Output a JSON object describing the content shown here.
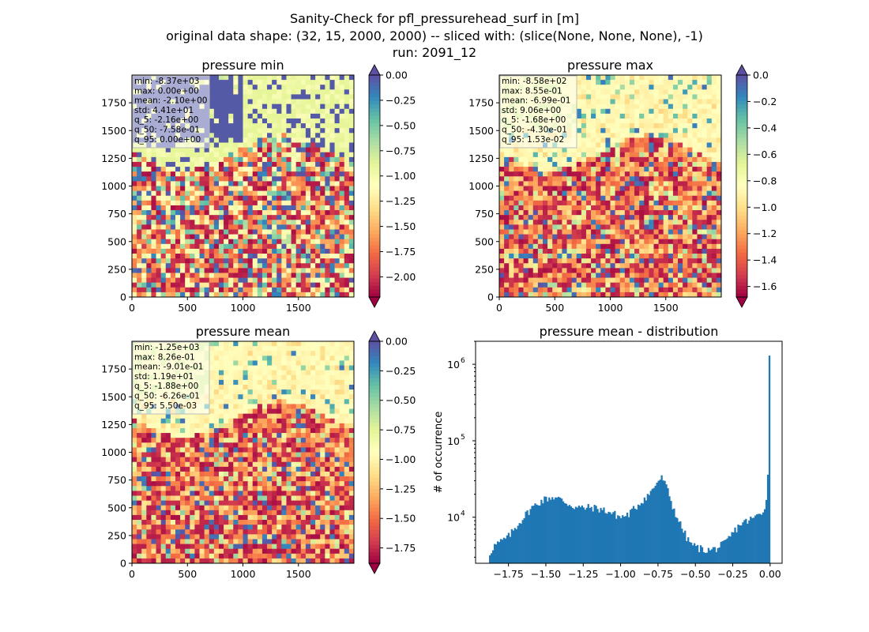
{
  "figure": {
    "title_lines": [
      "Sanity-Check for pfl_pressurehead_surf in [m]",
      "original data shape: (32, 15, 2000, 2000) -- sliced with: (slice(None, None, None), -1)",
      "run: 2091_12"
    ]
  },
  "chart_data": [
    {
      "type": "heatmap",
      "title": "pressure min",
      "colormap": "Spectral",
      "xticks": [
        0,
        500,
        1000,
        1500
      ],
      "yticks": [
        0,
        250,
        500,
        750,
        1000,
        1250,
        1500,
        1750
      ],
      "xlim": [
        0,
        2000
      ],
      "ylim": [
        0,
        2000
      ],
      "colorbar": {
        "min": -2.2,
        "max": 0.0,
        "ticks": [
          "0.00",
          "−0.25",
          "−0.50",
          "−0.75",
          "−1.00",
          "−1.25",
          "−1.50",
          "−1.75",
          "−2.00"
        ],
        "tick_values": [
          0,
          -0.25,
          -0.5,
          -0.75,
          -1.0,
          -1.25,
          -1.5,
          -1.75,
          -2.0
        ],
        "extend": "both"
      },
      "stats": [
        "min: -8.37e+03",
        "max: 0.00e+00",
        "mean: -2.10e+00",
        "std: 4.41e+01",
        "q_5: -2.16e+00",
        "q_50: -7.58e-01",
        "q_95: 0.00e+00"
      ]
    },
    {
      "type": "heatmap",
      "title": "pressure max",
      "colormap": "Spectral",
      "xticks": [
        0,
        500,
        1000,
        1500
      ],
      "yticks": [
        0,
        250,
        500,
        750,
        1000,
        1250,
        1500,
        1750
      ],
      "xlim": [
        0,
        2000
      ],
      "ylim": [
        0,
        2000
      ],
      "colorbar": {
        "min": -1.68,
        "max": 0.0,
        "ticks": [
          "0.0",
          "−0.2",
          "−0.4",
          "−0.6",
          "−0.8",
          "−1.0",
          "−1.2",
          "−1.4",
          "−1.6"
        ],
        "tick_values": [
          0,
          -0.2,
          -0.4,
          -0.6,
          -0.8,
          -1.0,
          -1.2,
          -1.4,
          -1.6
        ],
        "extend": "both"
      },
      "stats": [
        "min: -8.58e+02",
        "max: 8.55e-01",
        "mean: -6.99e-01",
        "std: 9.06e+00",
        "q_5: -1.68e+00",
        "q_50: -4.30e-01",
        "q_95: 1.53e-02"
      ]
    },
    {
      "type": "heatmap",
      "title": "pressure mean",
      "colormap": "Spectral",
      "xticks": [
        0,
        500,
        1000,
        1500
      ],
      "yticks": [
        0,
        250,
        500,
        750,
        1000,
        1250,
        1500,
        1750
      ],
      "xlim": [
        0,
        2000
      ],
      "ylim": [
        0,
        2000
      ],
      "colorbar": {
        "min": -1.88,
        "max": 0.0,
        "ticks": [
          "0.00",
          "−0.25",
          "−0.50",
          "−0.75",
          "−1.00",
          "−1.25",
          "−1.50",
          "−1.75"
        ],
        "tick_values": [
          0,
          -0.25,
          -0.5,
          -0.75,
          -1.0,
          -1.25,
          -1.5,
          -1.75
        ],
        "extend": "both"
      },
      "stats": [
        "min: -1.25e+03",
        "max: 8.26e-01",
        "mean: -9.01e-01",
        "std: 1.19e+01",
        "q_5: -1.88e+00",
        "q_50: -6.26e-01",
        "q_95: 5.50e-03"
      ]
    },
    {
      "type": "bar",
      "subtype": "histogram",
      "title": "pressure mean - distribution",
      "ylabel": "# of occurrence",
      "xlabel": "",
      "yscale": "log",
      "xlim": [
        -1.97,
        0.08
      ],
      "ylim": [
        2500,
        2000000
      ],
      "xticks": [
        "−1.75",
        "−1.50",
        "−1.25",
        "−1.00",
        "−0.75",
        "−0.50",
        "−0.25",
        "0.00"
      ],
      "xtick_values": [
        -1.75,
        -1.5,
        -1.25,
        -1.0,
        -0.75,
        -0.5,
        -0.25,
        0.0
      ],
      "ytick_labels": [
        "10",
        "10",
        "10"
      ],
      "ytick_exponents": [
        "4",
        "5",
        "6"
      ],
      "ytick_values": [
        10000,
        100000,
        1000000
      ],
      "color": "#1f77b4",
      "bin_range": [
        -1.88,
        0.0
      ],
      "profile": [
        [
          -1.88,
          3200
        ],
        [
          -1.85,
          4200
        ],
        [
          -1.8,
          4800
        ],
        [
          -1.75,
          5600
        ],
        [
          -1.7,
          7500
        ],
        [
          -1.65,
          10000
        ],
        [
          -1.6,
          13000
        ],
        [
          -1.55,
          15500
        ],
        [
          -1.5,
          17500
        ],
        [
          -1.45,
          18500
        ],
        [
          -1.4,
          17000
        ],
        [
          -1.35,
          15000
        ],
        [
          -1.3,
          13500
        ],
        [
          -1.25,
          13200
        ],
        [
          -1.2,
          13500
        ],
        [
          -1.15,
          13000
        ],
        [
          -1.1,
          12200
        ],
        [
          -1.05,
          11200
        ],
        [
          -1.0,
          10000
        ],
        [
          -0.95,
          10800
        ],
        [
          -0.9,
          13500
        ],
        [
          -0.85,
          17000
        ],
        [
          -0.8,
          21000
        ],
        [
          -0.75,
          30000
        ],
        [
          -0.72,
          33000
        ],
        [
          -0.68,
          21000
        ],
        [
          -0.65,
          13500
        ],
        [
          -0.6,
          8000
        ],
        [
          -0.55,
          5000
        ],
        [
          -0.5,
          4100
        ],
        [
          -0.45,
          3800
        ],
        [
          -0.4,
          3700
        ],
        [
          -0.35,
          4000
        ],
        [
          -0.3,
          4600
        ],
        [
          -0.25,
          6200
        ],
        [
          -0.2,
          8200
        ],
        [
          -0.15,
          9000
        ],
        [
          -0.1,
          10000
        ],
        [
          -0.05,
          12000
        ],
        [
          -0.02,
          18000
        ],
        [
          -0.01,
          36000
        ],
        [
          0.0,
          1300000
        ]
      ]
    }
  ]
}
